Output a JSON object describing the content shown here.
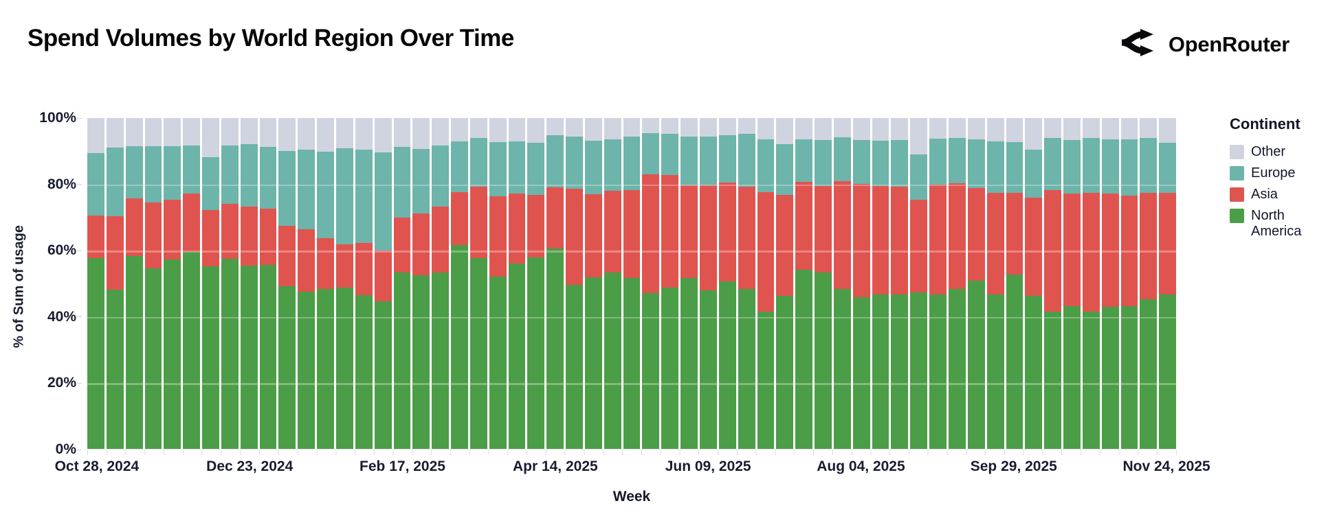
{
  "header": {
    "title": "Spend Volumes by World Region Over Time",
    "brand": "OpenRouter"
  },
  "chart_data": {
    "type": "bar",
    "stacked": true,
    "normalized_to_100": true,
    "title": "Spend Volumes by World Region Over Time",
    "xlabel": "Week",
    "ylabel": "% of Sum of usage",
    "ylim": [
      0,
      100
    ],
    "grid": "subtle horizontal lines every 20%",
    "y_ticks": [
      "0%",
      "20%",
      "40%",
      "60%",
      "80%",
      "100%"
    ],
    "x_tick_labels": [
      "Oct 28, 2024",
      "Dec 23, 2024",
      "Feb 17, 2025",
      "Apr 14, 2025",
      "Jun 09, 2025",
      "Aug 04, 2025",
      "Sep 29, 2025",
      "Nov 24, 2025"
    ],
    "x_tick_bar_indices": [
      0,
      8,
      16,
      24,
      32,
      40,
      48,
      56
    ],
    "categories": [
      "Oct 28, 2024",
      "Nov 04, 2024",
      "Nov 11, 2024",
      "Nov 18, 2024",
      "Nov 25, 2024",
      "Dec 02, 2024",
      "Dec 09, 2024",
      "Dec 16, 2024",
      "Dec 23, 2024",
      "Dec 30, 2024",
      "Jan 06, 2025",
      "Jan 13, 2025",
      "Jan 20, 2025",
      "Jan 27, 2025",
      "Feb 03, 2025",
      "Feb 10, 2025",
      "Feb 17, 2025",
      "Feb 24, 2025",
      "Mar 03, 2025",
      "Mar 10, 2025",
      "Mar 17, 2025",
      "Mar 24, 2025",
      "Mar 31, 2025",
      "Apr 07, 2025",
      "Apr 14, 2025",
      "Apr 21, 2025",
      "Apr 28, 2025",
      "May 05, 2025",
      "May 12, 2025",
      "May 19, 2025",
      "May 26, 2025",
      "Jun 02, 2025",
      "Jun 09, 2025",
      "Jun 16, 2025",
      "Jun 23, 2025",
      "Jun 30, 2025",
      "Jul 07, 2025",
      "Jul 14, 2025",
      "Jul 21, 2025",
      "Jul 28, 2025",
      "Aug 04, 2025",
      "Aug 11, 2025",
      "Aug 18, 2025",
      "Aug 25, 2025",
      "Sep 01, 2025",
      "Sep 08, 2025",
      "Sep 15, 2025",
      "Sep 22, 2025",
      "Sep 29, 2025",
      "Oct 06, 2025",
      "Oct 13, 2025",
      "Oct 20, 2025",
      "Oct 27, 2025",
      "Nov 03, 2025",
      "Nov 10, 2025",
      "Nov 17, 2025",
      "Nov 24, 2025"
    ],
    "series": [
      {
        "name": "North America",
        "color": "#4c9d47",
        "values": [
          57.6,
          48.2,
          58.3,
          54.5,
          57.3,
          59.6,
          55.1,
          57.4,
          55.3,
          55.7,
          49.2,
          47.5,
          48.3,
          48.8,
          46.4,
          44.7,
          53.3,
          52.4,
          53.3,
          61.6,
          57.6,
          52.1,
          56.0,
          57.8,
          60.5,
          49.5,
          51.9,
          53.3,
          51.6,
          47.1,
          48.7,
          51.6,
          48.0,
          50.6,
          48.3,
          41.6,
          46.2,
          54.2,
          53.3,
          48.4,
          45.9,
          46.6,
          46.6,
          47.4,
          46.7,
          48.4,
          50.9,
          46.6,
          52.8,
          46.2,
          41.4,
          43.1,
          41.6,
          42.9,
          43.1,
          45.2,
          46.7
        ]
      },
      {
        "name": "Asia",
        "color": "#e05450",
        "values": [
          13.0,
          22.2,
          17.5,
          20.0,
          18.1,
          17.6,
          17.0,
          16.6,
          18.0,
          16.9,
          18.2,
          18.8,
          15.5,
          13.1,
          15.9,
          15.3,
          16.7,
          18.7,
          20.0,
          16.0,
          21.6,
          24.3,
          21.2,
          18.9,
          18.5,
          29.2,
          25.1,
          24.8,
          26.7,
          35.8,
          34.1,
          28.1,
          31.7,
          30.0,
          30.9,
          36.0,
          30.5,
          26.5,
          26.2,
          32.6,
          34.1,
          32.9,
          32.6,
          28.0,
          33.2,
          31.9,
          28.0,
          30.7,
          24.5,
          29.7,
          36.9,
          34.1,
          35.8,
          34.2,
          33.4,
          32.2,
          30.6
        ]
      },
      {
        "name": "Europe",
        "color": "#6db4aa",
        "values": [
          18.8,
          20.7,
          15.6,
          17.1,
          16.2,
          14.6,
          16.1,
          17.8,
          18.8,
          18.6,
          22.7,
          24.2,
          26.1,
          28.9,
          28.1,
          29.7,
          21.2,
          19.5,
          18.5,
          15.4,
          14.7,
          16.4,
          15.8,
          15.9,
          15.9,
          15.8,
          16.2,
          15.4,
          16.2,
          12.5,
          12.4,
          14.8,
          14.8,
          14.3,
          16.0,
          16.0,
          15.4,
          12.8,
          13.8,
          13.3,
          13.3,
          13.7,
          14.1,
          13.6,
          13.8,
          13.7,
          14.6,
          15.7,
          15.4,
          14.5,
          15.6,
          16.1,
          16.5,
          16.4,
          17.1,
          16.5,
          15.3
        ]
      },
      {
        "name": "Other",
        "color": "#d0d4e1",
        "values": [
          10.6,
          8.9,
          8.6,
          8.4,
          8.4,
          8.2,
          11.8,
          8.2,
          7.9,
          8.8,
          9.9,
          9.5,
          10.1,
          9.2,
          9.6,
          10.3,
          8.8,
          9.4,
          8.2,
          7.0,
          6.1,
          7.2,
          7.0,
          7.4,
          5.1,
          5.5,
          6.8,
          6.5,
          5.5,
          4.6,
          4.8,
          5.5,
          5.5,
          5.1,
          4.8,
          6.4,
          7.9,
          6.5,
          6.7,
          5.7,
          6.7,
          6.8,
          6.7,
          11.0,
          6.3,
          6.0,
          6.5,
          7.0,
          7.3,
          9.6,
          6.1,
          6.7,
          6.1,
          6.5,
          6.4,
          6.1,
          7.4
        ]
      }
    ],
    "legend": {
      "title": "Continent",
      "position": "right",
      "entries_top_to_bottom": [
        {
          "label": "Other",
          "color": "#d0d4e1"
        },
        {
          "label": "Europe",
          "color": "#6db4aa"
        },
        {
          "label": "Asia",
          "color": "#e05450"
        },
        {
          "label": "North America",
          "color": "#4c9d47"
        }
      ]
    }
  }
}
